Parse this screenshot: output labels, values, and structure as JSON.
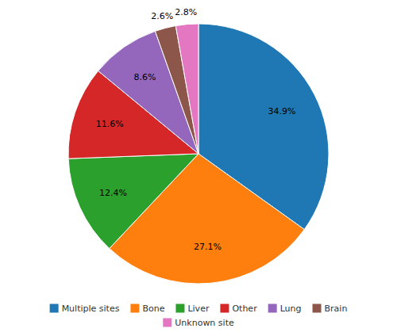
{
  "chart_data": {
    "type": "pie",
    "categories": [
      "Multiple sites",
      "Bone",
      "Liver",
      "Other",
      "Lung",
      "Brain",
      "Unknown site"
    ],
    "values": [
      34.9,
      27.1,
      12.4,
      11.6,
      8.6,
      2.6,
      2.8
    ],
    "value_labels": [
      "34.9%",
      "27.1%",
      "12.4%",
      "11.6%",
      "8.6%",
      "2.6%",
      "2.8%"
    ],
    "data_labels": true,
    "legend": "bottom"
  }
}
